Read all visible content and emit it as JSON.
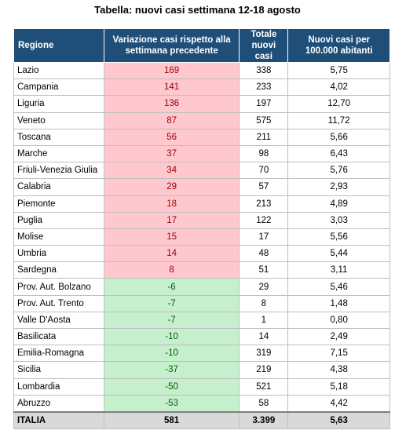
{
  "title": "Tabella: nuovi casi settimana 12-18 agosto",
  "table": {
    "header": [
      "Regione",
      "Variazione casi rispetto alla settimana precedente",
      "Totale nuovi casi",
      "Nuovi casi per 100.000 abitanti"
    ],
    "rows": [
      [
        "Lazio",
        "169",
        "338",
        "5,75"
      ],
      [
        "Campania",
        "141",
        "233",
        "4,02"
      ],
      [
        "Liguria",
        "136",
        "197",
        "12,70"
      ],
      [
        "Veneto",
        "87",
        "575",
        "11,72"
      ],
      [
        "Toscana",
        "56",
        "211",
        "5,66"
      ],
      [
        "Marche",
        "37",
        "98",
        "6,43"
      ],
      [
        "Friuli-Venezia Giulia",
        "34",
        "70",
        "5,76"
      ],
      [
        "Calabria",
        "29",
        "57",
        "2,93"
      ],
      [
        "Piemonte",
        "18",
        "213",
        "4,89"
      ],
      [
        "Puglia",
        "17",
        "122",
        "3,03"
      ],
      [
        "Molise",
        "15",
        "17",
        "5,56"
      ],
      [
        "Umbria",
        "14",
        "48",
        "5,44"
      ],
      [
        "Sardegna",
        "8",
        "51",
        "3,11"
      ],
      [
        "Prov. Aut. Bolzano",
        "-6",
        "29",
        "5,46"
      ],
      [
        "Prov. Aut. Trento",
        "-7",
        "8",
        "1,48"
      ],
      [
        "Valle D'Aosta",
        "-7",
        "1",
        "0,80"
      ],
      [
        "Basilicata",
        "-10",
        "14",
        "2,49"
      ],
      [
        "Emilia-Romagna",
        "-10",
        "319",
        "7,15"
      ],
      [
        "Sicilia",
        "-37",
        "219",
        "4,38"
      ],
      [
        "Lombardia",
        "-50",
        "521",
        "5,18"
      ],
      [
        "Abruzzo",
        "-53",
        "58",
        "4,42"
      ]
    ],
    "total": [
      "ITALIA",
      "581",
      "3.399",
      "5,63"
    ],
    "colors": {
      "increase_fill": "#ffc7ce",
      "increase_text": "#9c0006",
      "decrease_fill": "#c6efce",
      "decrease_text": "#006100",
      "header_fill": "#1f4e79",
      "total_fill": "#d9d9d9"
    }
  }
}
